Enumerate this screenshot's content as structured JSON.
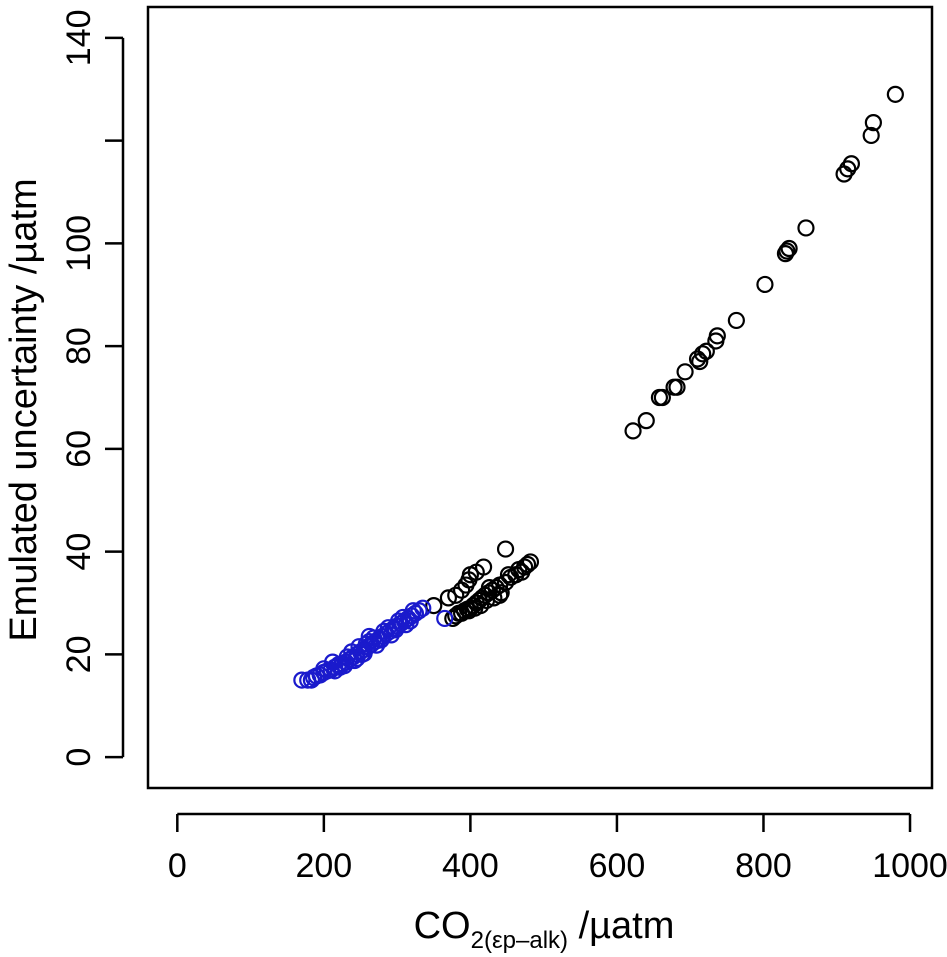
{
  "chart_data": {
    "type": "scatter",
    "title": "",
    "xlabel": {
      "main": "CO",
      "subscript": "2(εp–alk)",
      "unit": " /µatm"
    },
    "ylabel": "Emulated uncertainty /µatm",
    "xlim": [
      -40,
      1030
    ],
    "ylim": [
      -6,
      146
    ],
    "x_ticks": [
      0,
      200,
      400,
      600,
      800,
      1000
    ],
    "y_ticks": [
      0,
      20,
      40,
      60,
      80,
      100,
      120,
      140
    ],
    "x_tick_labels": [
      "0",
      "200",
      "400",
      "600",
      "800",
      "1000"
    ],
    "y_tick_labels": [
      "0",
      "20",
      "40",
      "60",
      "80",
      "100",
      "",
      "140"
    ],
    "grid": false,
    "marker": "open-circle",
    "series": [
      {
        "color": "#000000",
        "points": [
          [
            980,
            129
          ],
          [
            950,
            123.5
          ],
          [
            947,
            121
          ],
          [
            920,
            115.5
          ],
          [
            915,
            114.5
          ],
          [
            910,
            113.5
          ],
          [
            858,
            103
          ],
          [
            835,
            99
          ],
          [
            832,
            98.5
          ],
          [
            830,
            98
          ],
          [
            802,
            92
          ],
          [
            763,
            85
          ],
          [
            737,
            82
          ],
          [
            735,
            81
          ],
          [
            722,
            79
          ],
          [
            717,
            78.5
          ],
          [
            713,
            77
          ],
          [
            710,
            77.5
          ],
          [
            693,
            75
          ],
          [
            682,
            72
          ],
          [
            678,
            72
          ],
          [
            662,
            70
          ],
          [
            658,
            70
          ],
          [
            640,
            65.5
          ],
          [
            622,
            63.5
          ],
          [
            448,
            40.5
          ],
          [
            418,
            37
          ],
          [
            408,
            36
          ],
          [
            400,
            35.5
          ],
          [
            398,
            34.5
          ],
          [
            394,
            33.5
          ],
          [
            388,
            32.5
          ],
          [
            380,
            31.5
          ],
          [
            370,
            31
          ],
          [
            350,
            29.5
          ],
          [
            482,
            38
          ],
          [
            478,
            37.5
          ],
          [
            474,
            37
          ],
          [
            470,
            36
          ],
          [
            462,
            35.5
          ],
          [
            455,
            35
          ],
          [
            448,
            34
          ],
          [
            440,
            33.5
          ],
          [
            435,
            33
          ],
          [
            430,
            32.5
          ],
          [
            425,
            32
          ],
          [
            420,
            31.5
          ],
          [
            416,
            31
          ],
          [
            412,
            30.5
          ],
          [
            408,
            30
          ],
          [
            404,
            29.5
          ],
          [
            400,
            29
          ],
          [
            396,
            28.8
          ],
          [
            392,
            28.5
          ],
          [
            388,
            28
          ],
          [
            384,
            28
          ],
          [
            380,
            27.5
          ],
          [
            376,
            27
          ],
          [
            442,
            32
          ],
          [
            432,
            31
          ],
          [
            422,
            30.5
          ],
          [
            414,
            29.5
          ],
          [
            406,
            29
          ],
          [
            398,
            28.5
          ],
          [
            426,
            33
          ],
          [
            452,
            35.5
          ],
          [
            466,
            36.5
          ],
          [
            440,
            31.5
          ]
        ]
      },
      {
        "color": "#1a1acc",
        "points": [
          [
            170,
            15
          ],
          [
            178,
            15
          ],
          [
            183,
            15
          ],
          [
            186,
            15.5
          ],
          [
            190,
            15.8
          ],
          [
            195,
            16
          ],
          [
            200,
            16.5
          ],
          [
            205,
            16.8
          ],
          [
            210,
            17
          ],
          [
            215,
            17.5
          ],
          [
            220,
            18
          ],
          [
            225,
            18.2
          ],
          [
            230,
            18.5
          ],
          [
            235,
            19
          ],
          [
            240,
            19.5
          ],
          [
            245,
            20
          ],
          [
            250,
            20.5
          ],
          [
            255,
            21
          ],
          [
            260,
            21.5
          ],
          [
            265,
            22
          ],
          [
            270,
            22.5
          ],
          [
            275,
            23
          ],
          [
            280,
            23.5
          ],
          [
            285,
            24
          ],
          [
            290,
            24.5
          ],
          [
            295,
            25
          ],
          [
            300,
            25.5
          ],
          [
            305,
            26
          ],
          [
            310,
            26.5
          ],
          [
            315,
            27
          ],
          [
            320,
            27.5
          ],
          [
            325,
            28
          ],
          [
            330,
            28.5
          ],
          [
            335,
            29
          ],
          [
            212,
            18.5
          ],
          [
            222,
            17.5
          ],
          [
            232,
            19.5
          ],
          [
            242,
            18.8
          ],
          [
            252,
            20
          ],
          [
            262,
            22.5
          ],
          [
            262,
            23.5
          ],
          [
            272,
            21.8
          ],
          [
            282,
            24.5
          ],
          [
            292,
            23.8
          ],
          [
            302,
            26.5
          ],
          [
            312,
            25.8
          ],
          [
            322,
            28.5
          ],
          [
            228,
            17.8
          ],
          [
            238,
            20.5
          ],
          [
            248,
            21.5
          ],
          [
            258,
            22
          ],
          [
            268,
            23.2
          ],
          [
            278,
            22.8
          ],
          [
            288,
            25.2
          ],
          [
            298,
            24.8
          ],
          [
            308,
            27.2
          ],
          [
            318,
            26.5
          ],
          [
            365,
            27
          ],
          [
            200,
            17.2
          ],
          [
            215,
            16.8
          ],
          [
            245,
            19.2
          ],
          [
            255,
            20.2
          ]
        ]
      }
    ]
  }
}
